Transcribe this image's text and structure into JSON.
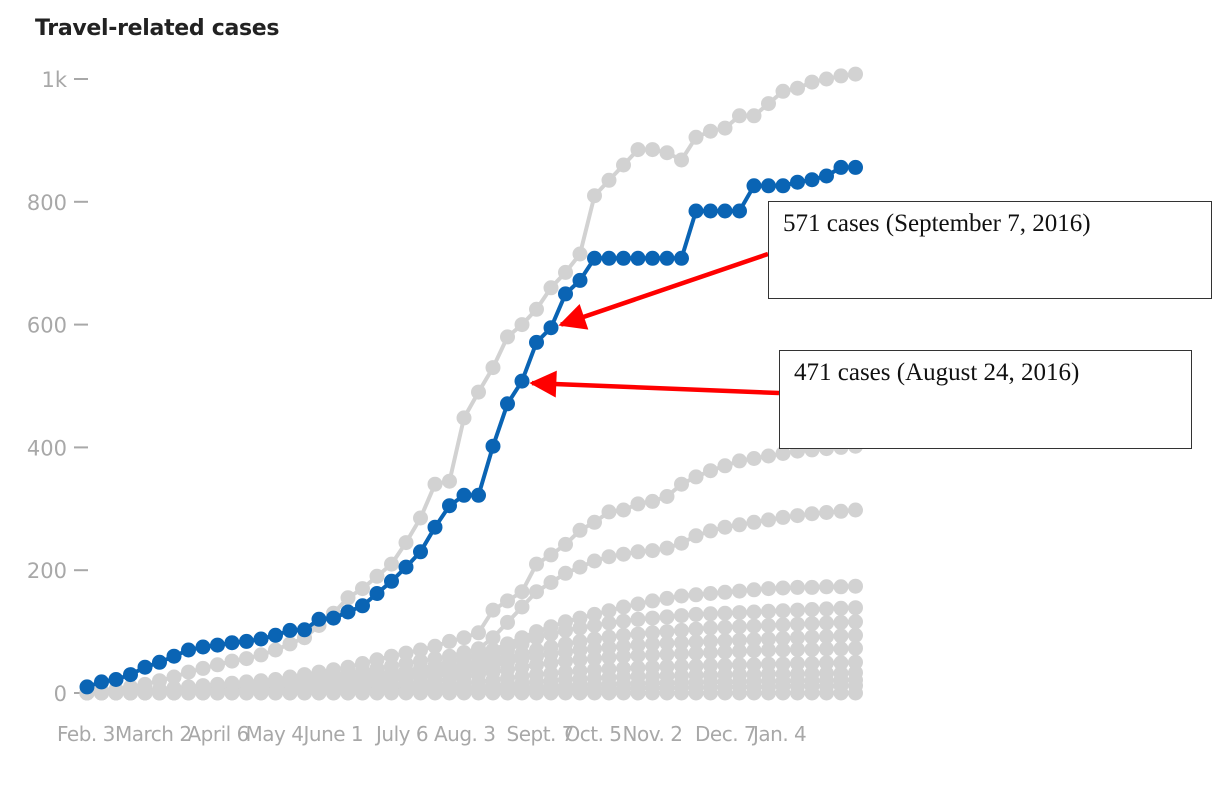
{
  "title": "Travel-related cases",
  "colors": {
    "highlight": "#0a64b4",
    "others": "#d2d2d2",
    "annotation_arrow": "#ff0000",
    "axis_text": "#a8a8a8"
  },
  "annotations": [
    {
      "text": "571 cases (September 7, 2016)",
      "point_week": 32
    },
    {
      "text": "471 cases (August 24, 2016)",
      "point_week": 30
    }
  ],
  "chart_data": {
    "type": "line",
    "title": "Travel-related cases",
    "xlabel": "",
    "ylabel": "",
    "ylim": [
      0,
      1000
    ],
    "y_ticks": [
      0,
      200,
      400,
      600,
      800,
      1000
    ],
    "y_tick_labels": [
      "0",
      "200",
      "400",
      "600",
      "800",
      "1k"
    ],
    "x_tick_labels": [
      "Feb. 3",
      "March 2",
      "April 6",
      "May 4",
      "June 1",
      "July 6",
      "Aug. 3",
      "Sept. 7",
      "Oct. 5",
      "Nov. 2",
      "Dec. 7",
      "Jan. 4"
    ],
    "x_tick_weeks": [
      0,
      4,
      9,
      13,
      17,
      22,
      26,
      31,
      35,
      39,
      44,
      48
    ],
    "grid": false,
    "x_unit": "weeks since Feb. 3",
    "highlight_series_index": 0,
    "series": [
      {
        "values": [
          10,
          18,
          22,
          30,
          42,
          50,
          60,
          70,
          75,
          78,
          82,
          84,
          88,
          94,
          102,
          103,
          120,
          122,
          132,
          142,
          162,
          182,
          205,
          230,
          270,
          305,
          322,
          322,
          402,
          471,
          508,
          571,
          595,
          650,
          672,
          708,
          708,
          708,
          708,
          708,
          708,
          708,
          785,
          785,
          785,
          785,
          826,
          826,
          826,
          832,
          836,
          842,
          856,
          856
        ]
      },
      {
        "values": [
          2,
          4,
          6,
          10,
          14,
          20,
          26,
          34,
          40,
          46,
          52,
          56,
          62,
          70,
          80,
          90,
          110,
          130,
          155,
          170,
          190,
          210,
          245,
          285,
          340,
          345,
          448,
          490,
          530,
          580,
          600,
          625,
          660,
          685,
          715,
          810,
          835,
          860,
          885,
          885,
          880,
          868,
          905,
          915,
          920,
          940,
          940,
          960,
          980,
          985,
          995,
          1000,
          1005,
          1008
        ]
      },
      {
        "values": [
          0,
          1,
          2,
          3,
          5,
          6,
          8,
          10,
          12,
          14,
          16,
          18,
          20,
          22,
          26,
          30,
          34,
          38,
          42,
          48,
          54,
          60,
          65,
          70,
          76,
          84,
          90,
          98,
          135,
          150,
          165,
          210,
          225,
          242,
          265,
          278,
          295,
          298,
          308,
          312,
          320,
          340,
          352,
          362,
          370,
          378,
          382,
          386,
          390,
          394,
          396,
          398,
          400,
          402
        ]
      },
      {
        "values": [
          0,
          1,
          2,
          3,
          4,
          5,
          6,
          8,
          10,
          12,
          14,
          16,
          18,
          20,
          22,
          24,
          27,
          30,
          33,
          36,
          40,
          44,
          48,
          52,
          56,
          60,
          66,
          72,
          90,
          115,
          140,
          165,
          180,
          195,
          205,
          215,
          222,
          226,
          230,
          232,
          236,
          244,
          256,
          264,
          270,
          274,
          278,
          282,
          286,
          289,
          292,
          294,
          296,
          298
        ]
      },
      {
        "values": [
          0,
          1,
          1,
          2,
          3,
          4,
          5,
          6,
          7,
          8,
          9,
          10,
          12,
          14,
          16,
          18,
          20,
          22,
          24,
          26,
          29,
          32,
          36,
          40,
          45,
          50,
          56,
          62,
          70,
          80,
          90,
          100,
          108,
          116,
          122,
          128,
          134,
          140,
          145,
          150,
          154,
          158,
          160,
          162,
          164,
          166,
          168,
          170,
          171,
          172,
          172,
          173,
          173,
          174
        ]
      },
      {
        "values": [
          0,
          0,
          1,
          2,
          3,
          4,
          5,
          6,
          8,
          10,
          12,
          14,
          16,
          18,
          20,
          22,
          24,
          26,
          28,
          30,
          32,
          34,
          36,
          38,
          40,
          42,
          46,
          52,
          60,
          70,
          80,
          90,
          96,
          102,
          106,
          110,
          114,
          117,
          120,
          122,
          124,
          126,
          128,
          129,
          130,
          131,
          132,
          133,
          134,
          135,
          136,
          137,
          138,
          139
        ]
      },
      {
        "values": [
          0,
          0,
          1,
          1,
          2,
          3,
          4,
          5,
          6,
          7,
          8,
          9,
          10,
          12,
          14,
          16,
          18,
          20,
          22,
          24,
          26,
          28,
          30,
          32,
          34,
          36,
          40,
          46,
          52,
          58,
          64,
          70,
          75,
          80,
          84,
          88,
          91,
          94,
          96,
          98,
          100,
          102,
          104,
          106,
          107,
          108,
          109,
          110,
          111,
          112,
          113,
          114,
          115,
          116
        ]
      },
      {
        "values": [
          0,
          0,
          0,
          1,
          1,
          2,
          3,
          4,
          5,
          6,
          7,
          8,
          9,
          10,
          11,
          12,
          13,
          14,
          16,
          18,
          20,
          22,
          24,
          26,
          28,
          30,
          34,
          38,
          44,
          50,
          55,
          60,
          64,
          67,
          70,
          72,
          74,
          76,
          78,
          80,
          81,
          82,
          83,
          84,
          85,
          86,
          87,
          88,
          89,
          90,
          91,
          92,
          93,
          94
        ]
      },
      {
        "values": [
          0,
          0,
          0,
          0,
          1,
          1,
          2,
          2,
          3,
          3,
          4,
          5,
          6,
          7,
          8,
          9,
          10,
          11,
          12,
          13,
          14,
          15,
          16,
          18,
          20,
          22,
          26,
          30,
          34,
          38,
          42,
          46,
          49,
          52,
          54,
          56,
          58,
          60,
          61,
          62,
          63,
          64,
          65,
          66,
          67,
          68,
          69,
          70,
          70,
          71,
          71,
          72,
          72,
          73
        ]
      },
      {
        "values": [
          0,
          0,
          0,
          0,
          0,
          1,
          1,
          1,
          2,
          2,
          3,
          3,
          4,
          4,
          5,
          5,
          6,
          6,
          7,
          8,
          9,
          10,
          11,
          12,
          13,
          14,
          16,
          18,
          21,
          24,
          27,
          30,
          32,
          34,
          36,
          38,
          39,
          40,
          41,
          42,
          43,
          44,
          44,
          45,
          45,
          46,
          46,
          47,
          47,
          48,
          48,
          49,
          49,
          50
        ]
      },
      {
        "values": [
          0,
          0,
          0,
          0,
          0,
          0,
          0,
          1,
          1,
          1,
          1,
          2,
          2,
          2,
          3,
          3,
          3,
          4,
          4,
          5,
          5,
          6,
          6,
          7,
          7,
          8,
          9,
          10,
          12,
          14,
          16,
          18,
          20,
          22,
          23,
          24,
          25,
          26,
          27,
          27,
          28,
          28,
          29,
          29,
          30,
          30,
          30,
          31,
          31,
          31,
          32,
          32,
          32,
          33
        ]
      },
      {
        "values": [
          0,
          0,
          0,
          0,
          0,
          0,
          0,
          0,
          0,
          0,
          1,
          1,
          1,
          1,
          1,
          2,
          2,
          2,
          2,
          3,
          3,
          3,
          4,
          4,
          4,
          5,
          5,
          6,
          7,
          8,
          9,
          10,
          11,
          12,
          13,
          14,
          14,
          15,
          15,
          16,
          16,
          17,
          17,
          18,
          18,
          18,
          19,
          19,
          19,
          20,
          20,
          20,
          21,
          21
        ]
      },
      {
        "values": [
          0,
          0,
          0,
          0,
          0,
          0,
          0,
          0,
          0,
          0,
          0,
          0,
          0,
          0,
          0,
          0,
          0,
          0,
          0,
          0,
          1,
          1,
          1,
          1,
          2,
          2,
          2,
          3,
          3,
          4,
          4,
          5,
          5,
          6,
          6,
          7,
          7,
          7,
          8,
          8,
          8,
          9,
          9,
          9,
          10,
          10,
          10,
          10,
          11,
          11,
          11,
          11,
          12,
          12
        ]
      },
      {
        "values": [
          0,
          0,
          0,
          0,
          0,
          0,
          0,
          0,
          0,
          0,
          0,
          0,
          0,
          0,
          0,
          0,
          0,
          0,
          0,
          0,
          0,
          0,
          0,
          0,
          0,
          0,
          0,
          0,
          0,
          0,
          0,
          0,
          0,
          0,
          0,
          0,
          0,
          0,
          0,
          0,
          0,
          0,
          0,
          0,
          0,
          0,
          0,
          0,
          0,
          0,
          0,
          0,
          0,
          0
        ]
      }
    ]
  }
}
